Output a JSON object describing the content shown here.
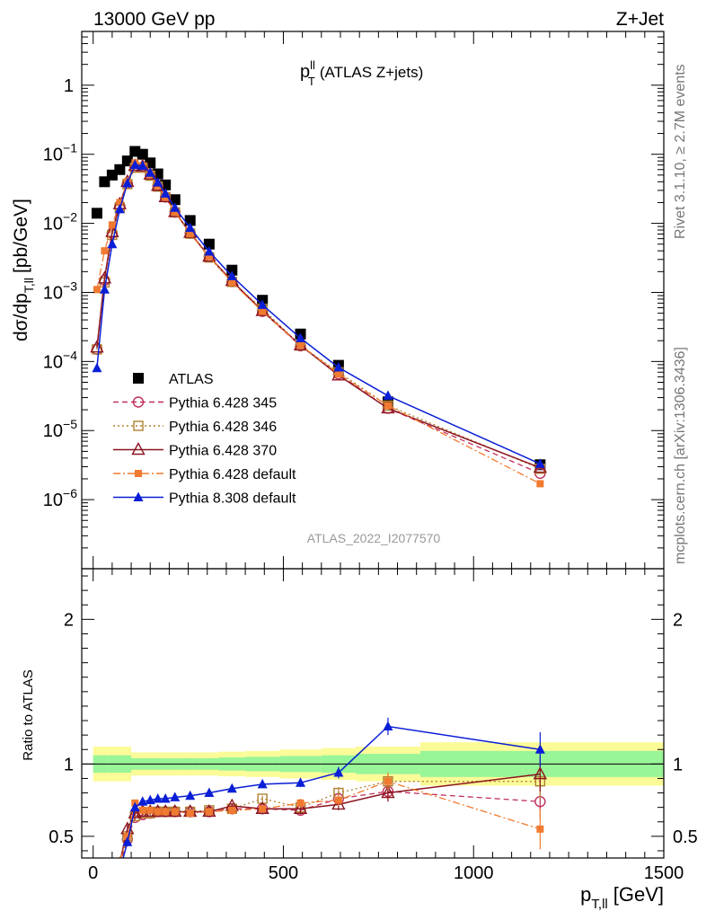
{
  "header": {
    "energy_label": "13000 GeV pp",
    "process_label": "Z+Jet",
    "analysis_id": "ATLAS_2022_I2077570",
    "side_label_top": "Rivet 3.1.10, ≥ 2.7M events",
    "side_label_bottom": "mcplots.cern.ch [arXiv:1306.3436]"
  },
  "chart_data": [
    {
      "type": "scatter",
      "panel": "main",
      "title": {
        "base": "p",
        "sup": "ll",
        "sub": "T",
        "rest": "(ATLAS Z+jets)"
      },
      "ylabel": {
        "base": "dσ/dp",
        "sub": "T,ll",
        "unit": "[pb/GeV]"
      },
      "yscale": "log",
      "xlim": [
        -30,
        1500
      ],
      "ylim": [
        1e-07,
        6
      ],
      "ytick_labels": [
        {
          "v": 1e-06,
          "base": "10",
          "exp": "−6"
        },
        {
          "v": 1e-05,
          "base": "10",
          "exp": "−5"
        },
        {
          "v": 0.0001,
          "base": "10",
          "exp": "−4"
        },
        {
          "v": 0.001,
          "base": "10",
          "exp": "−3"
        },
        {
          "v": 0.01,
          "base": "10",
          "exp": "−2"
        },
        {
          "v": 0.1,
          "base": "10",
          "exp": "−1"
        },
        {
          "v": 1,
          "base": "1",
          "exp": ""
        }
      ],
      "legend_position": "left-middle",
      "series": [
        {
          "name": "ATLAS",
          "color": "#000000",
          "marker": "square-filled",
          "line": "none",
          "x": [
            10,
            30,
            50,
            70,
            90,
            110,
            130,
            150,
            170,
            190,
            215,
            255,
            305,
            365,
            445,
            545,
            645,
            775,
            1175
          ],
          "y": [
            0.014,
            0.04,
            0.05,
            0.06,
            0.08,
            0.11,
            0.1,
            0.075,
            0.052,
            0.036,
            0.022,
            0.011,
            0.005,
            0.0021,
            0.00077,
            0.00025,
            8.8e-05,
            2.6e-05,
            3.2e-06
          ]
        },
        {
          "name": "Pythia 6.428 345",
          "color": "#c0305a",
          "marker": "circle-open",
          "line": "dashed",
          "x": [
            10,
            30,
            50,
            70,
            90,
            110,
            130,
            150,
            170,
            190,
            215,
            255,
            305,
            365,
            445,
            545,
            645,
            775,
            1175
          ],
          "y": [
            0.00015,
            0.0015,
            0.0072,
            0.018,
            0.038,
            0.065,
            0.065,
            0.05,
            0.035,
            0.024,
            0.0145,
            0.0072,
            0.0033,
            0.00143,
            0.00053,
            0.000168,
            6.6e-05,
            2.1e-05,
            2.4e-06
          ]
        },
        {
          "name": "Pythia 6.428 346",
          "color": "#b08030",
          "marker": "square-open",
          "line": "dotted",
          "x": [
            10,
            30,
            50,
            70,
            90,
            110,
            130,
            150,
            170,
            190,
            215,
            255,
            305,
            365,
            445,
            545,
            645,
            775,
            1175
          ],
          "y": [
            0.00015,
            0.0014,
            0.0068,
            0.017,
            0.037,
            0.064,
            0.064,
            0.049,
            0.034,
            0.024,
            0.0144,
            0.0071,
            0.0032,
            0.00142,
            0.00058,
            0.00017,
            7e-05,
            2.3e-05,
            2.8e-06
          ]
        },
        {
          "name": "Pythia 6.428 370",
          "color": "#8b1520",
          "marker": "triangle-open",
          "line": "solid",
          "x": [
            10,
            30,
            50,
            70,
            90,
            110,
            130,
            150,
            170,
            190,
            215,
            255,
            305,
            365,
            445,
            545,
            645,
            775,
            1175
          ],
          "y": [
            0.00016,
            0.0016,
            0.0075,
            0.019,
            0.04,
            0.068,
            0.067,
            0.051,
            0.035,
            0.024,
            0.0146,
            0.0073,
            0.0033,
            0.00147,
            0.00054,
            0.000172,
            6.3e-05,
            2.1e-05,
            2.9e-06
          ]
        },
        {
          "name": "Pythia 6.428 default",
          "color": "#f07a30",
          "marker": "square-filled-small",
          "line": "dashdot",
          "x": [
            10,
            30,
            50,
            70,
            90,
            110,
            130,
            150,
            170,
            190,
            215,
            255,
            305,
            365,
            445,
            545,
            645,
            775,
            1175
          ],
          "y": [
            0.0011,
            0.004,
            0.0095,
            0.02,
            0.04,
            0.075,
            0.068,
            0.051,
            0.035,
            0.024,
            0.0145,
            0.0071,
            0.0033,
            0.0014,
            0.00053,
            0.000172,
            6.6e-05,
            2.3e-05,
            1.7e-06
          ]
        },
        {
          "name": "Pythia 8.308 default",
          "color": "#0a1ed6",
          "marker": "triangle-filled",
          "line": "solid",
          "x": [
            10,
            30,
            50,
            70,
            90,
            110,
            130,
            150,
            170,
            190,
            215,
            255,
            305,
            365,
            445,
            545,
            645,
            775,
            1175
          ],
          "y": [
            8e-05,
            0.0011,
            0.005,
            0.016,
            0.038,
            0.07,
            0.068,
            0.054,
            0.039,
            0.027,
            0.0168,
            0.0086,
            0.0039,
            0.00172,
            0.00066,
            0.000218,
            8.2e-05,
            3.2e-05,
            3.3e-06
          ]
        }
      ]
    },
    {
      "type": "line",
      "panel": "ratio",
      "ylabel": "Ratio to ATLAS",
      "xlabel": {
        "base": "p",
        "sub": "T,ll",
        "unit": "[GeV]"
      },
      "xlim": [
        -30,
        1500
      ],
      "ylim": [
        0.35,
        2.35
      ],
      "xticks": [
        0,
        500,
        1000,
        1500
      ],
      "xtick_labels": [
        "0",
        "500",
        "1000",
        "1500"
      ],
      "yticks": [
        0.5,
        1,
        2
      ],
      "ytick_labels": [
        "0.5",
        "1",
        "2"
      ],
      "reference_line": 1,
      "bands": {
        "bin_edges": [
          0,
          20,
          40,
          60,
          80,
          100,
          120,
          140,
          160,
          180,
          200,
          230,
          280,
          330,
          400,
          490,
          600,
          690,
          860,
          1500
        ],
        "inner": [
          0.06,
          0.06,
          0.06,
          0.06,
          0.06,
          0.04,
          0.04,
          0.04,
          0.04,
          0.04,
          0.04,
          0.04,
          0.04,
          0.045,
          0.05,
          0.055,
          0.06,
          0.07,
          0.09
        ],
        "outer": [
          0.12,
          0.12,
          0.12,
          0.12,
          0.12,
          0.08,
          0.08,
          0.08,
          0.08,
          0.08,
          0.08,
          0.08,
          0.08,
          0.085,
          0.09,
          0.1,
          0.11,
          0.12,
          0.15
        ],
        "inner_color": "#98f598",
        "outer_color": "#fbfb98"
      },
      "series": [
        {
          "name": "Pythia 6.428 345",
          "color": "#c0305a",
          "line": "dashed",
          "x": [
            70,
            90,
            110,
            130,
            150,
            170,
            190,
            215,
            255,
            305,
            365,
            445,
            545,
            645,
            775,
            1175
          ],
          "y": [
            0.3,
            0.48,
            0.63,
            0.65,
            0.66,
            0.67,
            0.67,
            0.67,
            0.67,
            0.67,
            0.69,
            0.69,
            0.68,
            0.76,
            0.81,
            0.74
          ],
          "err": [
            0.03,
            0.03,
            0.02,
            0.02,
            0.02,
            0.02,
            0.02,
            0.02,
            0.02,
            0.02,
            0.02,
            0.02,
            0.03,
            0.04,
            0.06,
            0.12
          ]
        },
        {
          "name": "Pythia 6.428 346",
          "color": "#b08030",
          "line": "dotted",
          "x": [
            70,
            90,
            110,
            130,
            150,
            170,
            190,
            215,
            255,
            305,
            365,
            445,
            545,
            645,
            775,
            1175
          ],
          "y": [
            0.3,
            0.5,
            0.64,
            0.66,
            0.66,
            0.67,
            0.67,
            0.67,
            0.67,
            0.68,
            0.69,
            0.76,
            0.7,
            0.8,
            0.88,
            0.88
          ],
          "err": [
            0.03,
            0.03,
            0.02,
            0.02,
            0.02,
            0.02,
            0.02,
            0.02,
            0.02,
            0.02,
            0.02,
            0.02,
            0.03,
            0.04,
            0.06,
            0.12
          ]
        },
        {
          "name": "Pythia 6.428 370",
          "color": "#8b1520",
          "line": "solid",
          "x": [
            70,
            90,
            110,
            130,
            150,
            170,
            190,
            215,
            255,
            305,
            365,
            445,
            545,
            645,
            775,
            1175
          ],
          "y": [
            0.32,
            0.55,
            0.66,
            0.67,
            0.67,
            0.67,
            0.67,
            0.67,
            0.67,
            0.67,
            0.71,
            0.69,
            0.69,
            0.72,
            0.8,
            0.93
          ],
          "err": [
            0.03,
            0.03,
            0.02,
            0.02,
            0.02,
            0.02,
            0.02,
            0.02,
            0.02,
            0.02,
            0.02,
            0.02,
            0.03,
            0.04,
            0.06,
            0.12
          ]
        },
        {
          "name": "Pythia 6.428 default",
          "color": "#f07a30",
          "line": "dashdot",
          "x": [
            70,
            90,
            110,
            130,
            150,
            170,
            190,
            215,
            255,
            305,
            365,
            445,
            545,
            645,
            775,
            1175
          ],
          "y": [
            0.33,
            0.5,
            0.73,
            0.68,
            0.68,
            0.67,
            0.67,
            0.67,
            0.66,
            0.67,
            0.68,
            0.69,
            0.73,
            0.75,
            0.88,
            0.55
          ],
          "err": [
            0.03,
            0.03,
            0.02,
            0.02,
            0.02,
            0.02,
            0.02,
            0.02,
            0.02,
            0.02,
            0.02,
            0.02,
            0.03,
            0.04,
            0.06,
            0.14
          ]
        },
        {
          "name": "Pythia 8.308 default",
          "color": "#0a1ed6",
          "line": "solid",
          "x": [
            70,
            90,
            110,
            130,
            150,
            170,
            190,
            215,
            255,
            305,
            365,
            445,
            545,
            645,
            775,
            1175
          ],
          "y": [
            0.26,
            0.46,
            0.7,
            0.74,
            0.75,
            0.76,
            0.76,
            0.77,
            0.78,
            0.8,
            0.83,
            0.86,
            0.87,
            0.94,
            1.26,
            1.1
          ],
          "err": [
            0.03,
            0.03,
            0.02,
            0.02,
            0.02,
            0.02,
            0.02,
            0.02,
            0.02,
            0.02,
            0.02,
            0.02,
            0.03,
            0.04,
            0.06,
            0.12
          ]
        }
      ]
    }
  ]
}
